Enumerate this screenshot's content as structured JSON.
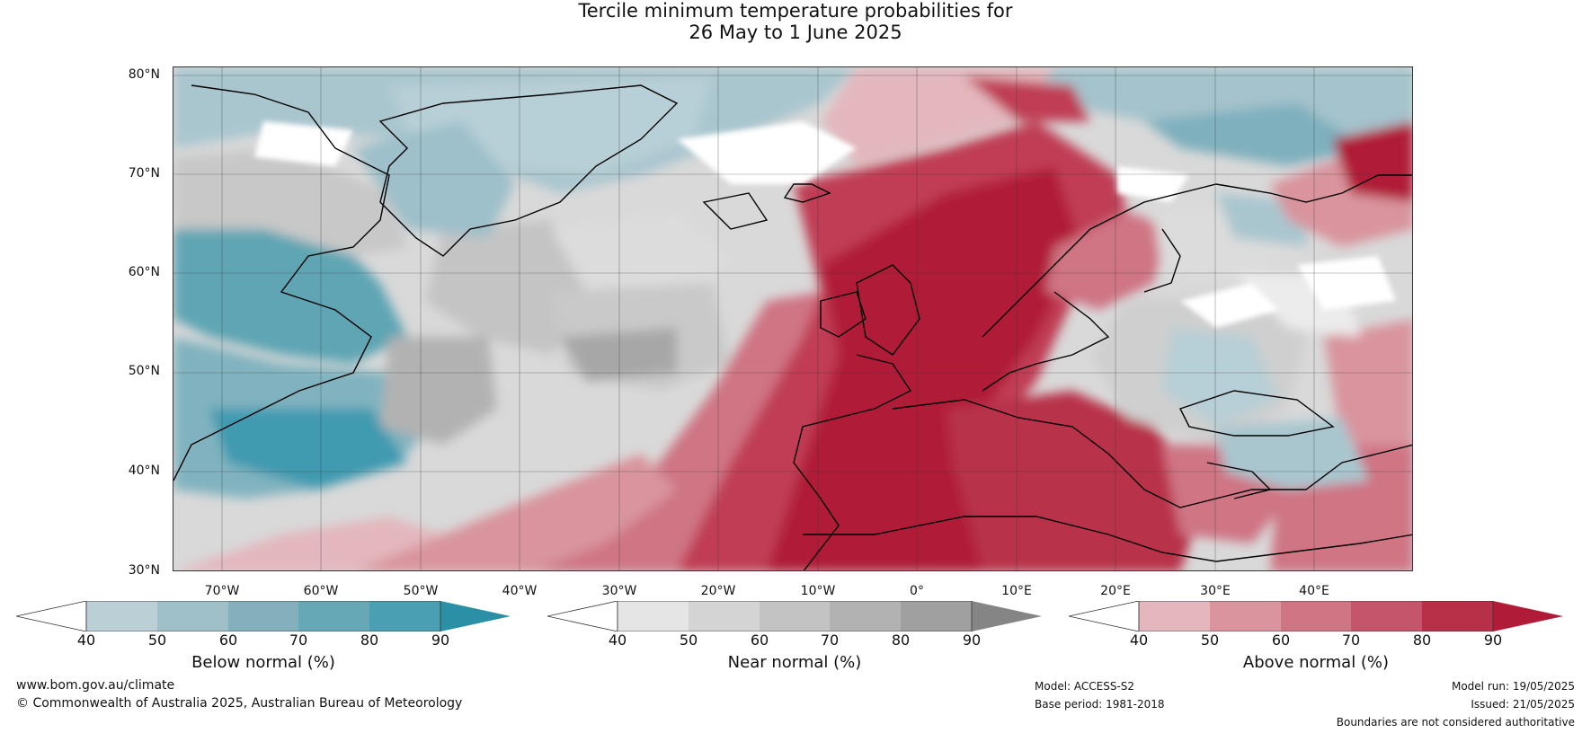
{
  "title_line1": "Tercile minimum temperature probabilities for",
  "title_line2": "26 May to 1 June 2025",
  "lat_labels": [
    "80°N",
    "70°N",
    "60°N",
    "50°N",
    "40°N",
    "30°N"
  ],
  "lon_labels": [
    "70°W",
    "60°W",
    "50°W",
    "40°W",
    "30°W",
    "20°W",
    "10°W",
    "0°",
    "10°E",
    "20°E",
    "30°E",
    "40°E"
  ],
  "legends": {
    "below": {
      "label": "Below normal (%)",
      "ticks": [
        "40",
        "50",
        "60",
        "70",
        "80",
        "90"
      ],
      "colors": [
        "#ffffff",
        "#bacfd6",
        "#9fbfc9",
        "#84b0be",
        "#67a8b6",
        "#4aa0b2",
        "#2b90a6"
      ]
    },
    "near": {
      "label": "Near normal (%)",
      "ticks": [
        "40",
        "50",
        "60",
        "70",
        "80",
        "90"
      ],
      "colors": [
        "#ffffff",
        "#e5e5e5",
        "#d4d4d4",
        "#c3c3c3",
        "#b2b2b2",
        "#a0a0a0",
        "#858585"
      ]
    },
    "above": {
      "label": "Above normal (%)",
      "ticks": [
        "40",
        "50",
        "60",
        "70",
        "80",
        "90"
      ],
      "colors": [
        "#ffffff",
        "#e3b7bd",
        "#d9949e",
        "#cf7584",
        "#c4556a",
        "#b83048",
        "#b01c38"
      ]
    }
  },
  "footer": {
    "website": "www.bom.gov.au/climate",
    "copyright": "© Commonwealth of Australia 2025, Australian Bureau of Meteorology",
    "model": "Model: ACCESS-S2",
    "base_period": "Base period: 1981-2018",
    "model_run": "Model run: 19/05/2025",
    "issued": "Issued: 21/05/2025",
    "disclaimer": "Boundaries are not considered authoritative"
  }
}
